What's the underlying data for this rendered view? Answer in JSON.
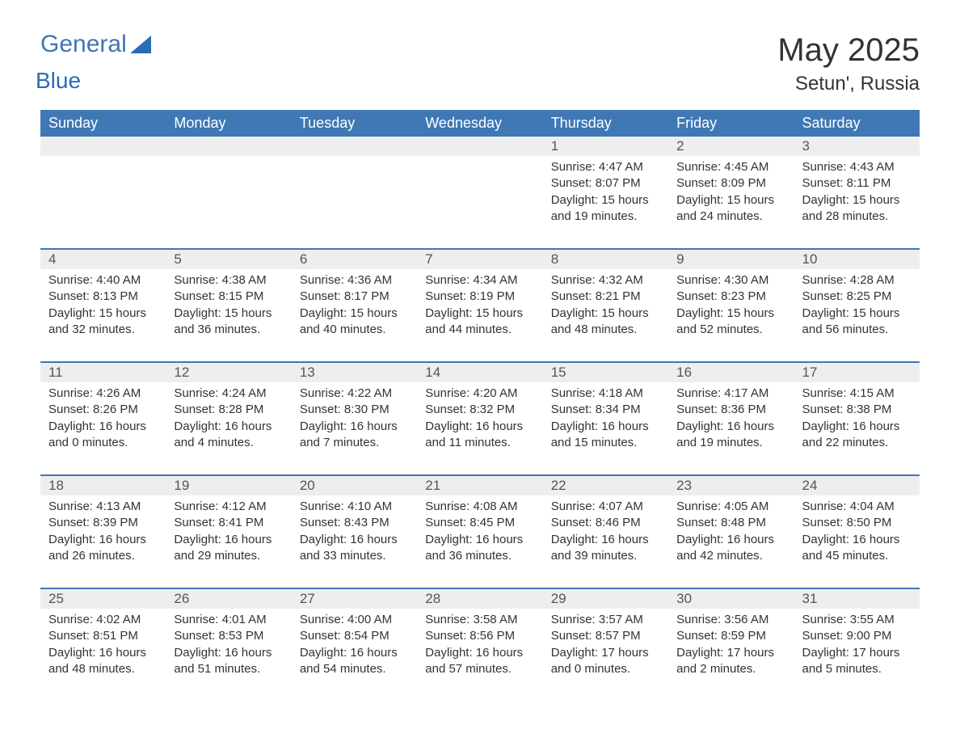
{
  "brand": {
    "word1": "General",
    "word2": "Blue",
    "logo_color": "#3f75b4"
  },
  "title": "May 2025",
  "location": "Setun', Russia",
  "header_bg": "#3f78b5",
  "header_fg": "#ffffff",
  "daynum_bg": "#eeeeee",
  "text_color": "#333333",
  "week_border_color": "#3f78b5",
  "day_headers": [
    "Sunday",
    "Monday",
    "Tuesday",
    "Wednesday",
    "Thursday",
    "Friday",
    "Saturday"
  ],
  "weeks": [
    {
      "days": [
        {
          "num": "",
          "sunrise": "",
          "sunset": "",
          "daylight1": "",
          "daylight2": ""
        },
        {
          "num": "",
          "sunrise": "",
          "sunset": "",
          "daylight1": "",
          "daylight2": ""
        },
        {
          "num": "",
          "sunrise": "",
          "sunset": "",
          "daylight1": "",
          "daylight2": ""
        },
        {
          "num": "",
          "sunrise": "",
          "sunset": "",
          "daylight1": "",
          "daylight2": ""
        },
        {
          "num": "1",
          "sunrise": "Sunrise: 4:47 AM",
          "sunset": "Sunset: 8:07 PM",
          "daylight1": "Daylight: 15 hours",
          "daylight2": "and 19 minutes."
        },
        {
          "num": "2",
          "sunrise": "Sunrise: 4:45 AM",
          "sunset": "Sunset: 8:09 PM",
          "daylight1": "Daylight: 15 hours",
          "daylight2": "and 24 minutes."
        },
        {
          "num": "3",
          "sunrise": "Sunrise: 4:43 AM",
          "sunset": "Sunset: 8:11 PM",
          "daylight1": "Daylight: 15 hours",
          "daylight2": "and 28 minutes."
        }
      ]
    },
    {
      "days": [
        {
          "num": "4",
          "sunrise": "Sunrise: 4:40 AM",
          "sunset": "Sunset: 8:13 PM",
          "daylight1": "Daylight: 15 hours",
          "daylight2": "and 32 minutes."
        },
        {
          "num": "5",
          "sunrise": "Sunrise: 4:38 AM",
          "sunset": "Sunset: 8:15 PM",
          "daylight1": "Daylight: 15 hours",
          "daylight2": "and 36 minutes."
        },
        {
          "num": "6",
          "sunrise": "Sunrise: 4:36 AM",
          "sunset": "Sunset: 8:17 PM",
          "daylight1": "Daylight: 15 hours",
          "daylight2": "and 40 minutes."
        },
        {
          "num": "7",
          "sunrise": "Sunrise: 4:34 AM",
          "sunset": "Sunset: 8:19 PM",
          "daylight1": "Daylight: 15 hours",
          "daylight2": "and 44 minutes."
        },
        {
          "num": "8",
          "sunrise": "Sunrise: 4:32 AM",
          "sunset": "Sunset: 8:21 PM",
          "daylight1": "Daylight: 15 hours",
          "daylight2": "and 48 minutes."
        },
        {
          "num": "9",
          "sunrise": "Sunrise: 4:30 AM",
          "sunset": "Sunset: 8:23 PM",
          "daylight1": "Daylight: 15 hours",
          "daylight2": "and 52 minutes."
        },
        {
          "num": "10",
          "sunrise": "Sunrise: 4:28 AM",
          "sunset": "Sunset: 8:25 PM",
          "daylight1": "Daylight: 15 hours",
          "daylight2": "and 56 minutes."
        }
      ]
    },
    {
      "days": [
        {
          "num": "11",
          "sunrise": "Sunrise: 4:26 AM",
          "sunset": "Sunset: 8:26 PM",
          "daylight1": "Daylight: 16 hours",
          "daylight2": "and 0 minutes."
        },
        {
          "num": "12",
          "sunrise": "Sunrise: 4:24 AM",
          "sunset": "Sunset: 8:28 PM",
          "daylight1": "Daylight: 16 hours",
          "daylight2": "and 4 minutes."
        },
        {
          "num": "13",
          "sunrise": "Sunrise: 4:22 AM",
          "sunset": "Sunset: 8:30 PM",
          "daylight1": "Daylight: 16 hours",
          "daylight2": "and 7 minutes."
        },
        {
          "num": "14",
          "sunrise": "Sunrise: 4:20 AM",
          "sunset": "Sunset: 8:32 PM",
          "daylight1": "Daylight: 16 hours",
          "daylight2": "and 11 minutes."
        },
        {
          "num": "15",
          "sunrise": "Sunrise: 4:18 AM",
          "sunset": "Sunset: 8:34 PM",
          "daylight1": "Daylight: 16 hours",
          "daylight2": "and 15 minutes."
        },
        {
          "num": "16",
          "sunrise": "Sunrise: 4:17 AM",
          "sunset": "Sunset: 8:36 PM",
          "daylight1": "Daylight: 16 hours",
          "daylight2": "and 19 minutes."
        },
        {
          "num": "17",
          "sunrise": "Sunrise: 4:15 AM",
          "sunset": "Sunset: 8:38 PM",
          "daylight1": "Daylight: 16 hours",
          "daylight2": "and 22 minutes."
        }
      ]
    },
    {
      "days": [
        {
          "num": "18",
          "sunrise": "Sunrise: 4:13 AM",
          "sunset": "Sunset: 8:39 PM",
          "daylight1": "Daylight: 16 hours",
          "daylight2": "and 26 minutes."
        },
        {
          "num": "19",
          "sunrise": "Sunrise: 4:12 AM",
          "sunset": "Sunset: 8:41 PM",
          "daylight1": "Daylight: 16 hours",
          "daylight2": "and 29 minutes."
        },
        {
          "num": "20",
          "sunrise": "Sunrise: 4:10 AM",
          "sunset": "Sunset: 8:43 PM",
          "daylight1": "Daylight: 16 hours",
          "daylight2": "and 33 minutes."
        },
        {
          "num": "21",
          "sunrise": "Sunrise: 4:08 AM",
          "sunset": "Sunset: 8:45 PM",
          "daylight1": "Daylight: 16 hours",
          "daylight2": "and 36 minutes."
        },
        {
          "num": "22",
          "sunrise": "Sunrise: 4:07 AM",
          "sunset": "Sunset: 8:46 PM",
          "daylight1": "Daylight: 16 hours",
          "daylight2": "and 39 minutes."
        },
        {
          "num": "23",
          "sunrise": "Sunrise: 4:05 AM",
          "sunset": "Sunset: 8:48 PM",
          "daylight1": "Daylight: 16 hours",
          "daylight2": "and 42 minutes."
        },
        {
          "num": "24",
          "sunrise": "Sunrise: 4:04 AM",
          "sunset": "Sunset: 8:50 PM",
          "daylight1": "Daylight: 16 hours",
          "daylight2": "and 45 minutes."
        }
      ]
    },
    {
      "days": [
        {
          "num": "25",
          "sunrise": "Sunrise: 4:02 AM",
          "sunset": "Sunset: 8:51 PM",
          "daylight1": "Daylight: 16 hours",
          "daylight2": "and 48 minutes."
        },
        {
          "num": "26",
          "sunrise": "Sunrise: 4:01 AM",
          "sunset": "Sunset: 8:53 PM",
          "daylight1": "Daylight: 16 hours",
          "daylight2": "and 51 minutes."
        },
        {
          "num": "27",
          "sunrise": "Sunrise: 4:00 AM",
          "sunset": "Sunset: 8:54 PM",
          "daylight1": "Daylight: 16 hours",
          "daylight2": "and 54 minutes."
        },
        {
          "num": "28",
          "sunrise": "Sunrise: 3:58 AM",
          "sunset": "Sunset: 8:56 PM",
          "daylight1": "Daylight: 16 hours",
          "daylight2": "and 57 minutes."
        },
        {
          "num": "29",
          "sunrise": "Sunrise: 3:57 AM",
          "sunset": "Sunset: 8:57 PM",
          "daylight1": "Daylight: 17 hours",
          "daylight2": "and 0 minutes."
        },
        {
          "num": "30",
          "sunrise": "Sunrise: 3:56 AM",
          "sunset": "Sunset: 8:59 PM",
          "daylight1": "Daylight: 17 hours",
          "daylight2": "and 2 minutes."
        },
        {
          "num": "31",
          "sunrise": "Sunrise: 3:55 AM",
          "sunset": "Sunset: 9:00 PM",
          "daylight1": "Daylight: 17 hours",
          "daylight2": "and 5 minutes."
        }
      ]
    }
  ]
}
